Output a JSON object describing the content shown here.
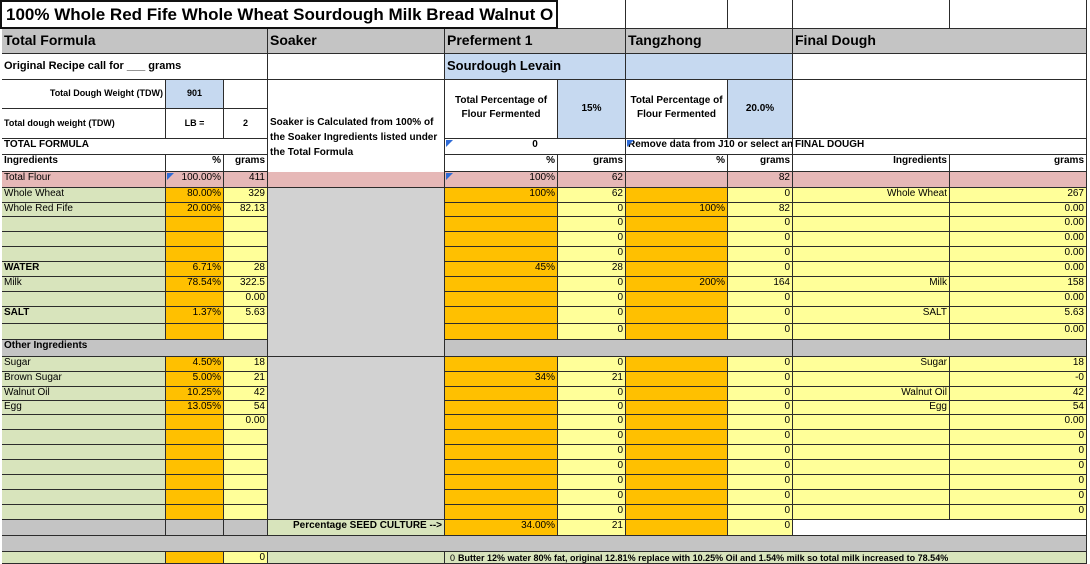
{
  "sheet_title": "100% Whole Red Fife Whole Wheat Sourdough Milk Bread Walnut O",
  "headers": {
    "total_formula": "Total Formula",
    "soaker": "Soaker",
    "preferment": "Preferment 1",
    "tangzhong": "Tangzhong",
    "final_dough": "Final Dough"
  },
  "original_recipe_label": "Original Recipe call for ___ grams",
  "sourdough_levain": "Sourdough Levain",
  "tdw_label": "Total Dough Weight (TDW)",
  "tdw_value": "901",
  "tdw_lb_label": "Total dough weight (TDW)",
  "lb_label": "LB =",
  "lb_value": "2",
  "soaker_note": "Soaker is Calculated from 100% of the Soaker Ingredients listed under the Total Formula",
  "pref_pct_label": "Total Percentage of Flour Fermented",
  "pref_pct_value": "15%",
  "tang_pct_label": "Total Percentage of Flour Fermented",
  "tang_pct_value": "20.0%",
  "total_formula_caps": "TOTAL FORMULA",
  "pref_zero": "0",
  "tang_remove_note": "Remove data from J10 or select an",
  "final_dough_caps": "FINAL DOUGH",
  "col_labels": {
    "ingredients": "Ingredients",
    "pct": "%",
    "grams": "grams"
  },
  "rows": [
    {
      "label": "Total Flour",
      "pct": "100.00%",
      "grams": "411",
      "pref_pct": "100%",
      "pref_g": "62",
      "tang_pct": "",
      "tang_g": "82",
      "fd_ing": "",
      "fd_g": ""
    },
    {
      "label": "Whole Wheat",
      "pct": "80.00%",
      "grams": "329",
      "pref_pct": "100%",
      "pref_g": "62",
      "tang_pct": "",
      "tang_g": "0",
      "fd_ing": "Whole Wheat",
      "fd_g": "267"
    },
    {
      "label": "Whole Red Fife",
      "pct": "20.00%",
      "grams": "82.13",
      "pref_pct": "",
      "pref_g": "0",
      "tang_pct": "100%",
      "tang_g": "82",
      "fd_ing": "",
      "fd_g": "0.00"
    },
    {
      "label": "",
      "pct": "",
      "grams": "",
      "pref_pct": "",
      "pref_g": "0",
      "tang_pct": "",
      "tang_g": "0",
      "fd_ing": "",
      "fd_g": "0.00"
    },
    {
      "label": "",
      "pct": "",
      "grams": "",
      "pref_pct": "",
      "pref_g": "0",
      "tang_pct": "",
      "tang_g": "0",
      "fd_ing": "",
      "fd_g": "0.00"
    },
    {
      "label": "",
      "pct": "",
      "grams": "",
      "pref_pct": "",
      "pref_g": "0",
      "tang_pct": "",
      "tang_g": "0",
      "fd_ing": "",
      "fd_g": "0.00"
    },
    {
      "label": "WATER",
      "pct": "6.71%",
      "grams": "28",
      "pref_pct": "45%",
      "pref_g": "28",
      "tang_pct": "",
      "tang_g": "0",
      "fd_ing": "",
      "fd_g": "0.00"
    },
    {
      "label": "Milk",
      "pct": "78.54%",
      "grams": "322.5",
      "pref_pct": "",
      "pref_g": "0",
      "tang_pct": "200%",
      "tang_g": "164",
      "fd_ing": "Milk",
      "fd_g": "158"
    },
    {
      "label": "",
      "pct": "",
      "grams": "0.00",
      "pref_pct": "",
      "pref_g": "0",
      "tang_pct": "",
      "tang_g": "0",
      "fd_ing": "",
      "fd_g": "0.00"
    },
    {
      "label": "SALT",
      "pct": "1.37%",
      "grams": "5.63",
      "pref_pct": "",
      "pref_g": "0",
      "tang_pct": "",
      "tang_g": "0",
      "fd_ing": "SALT",
      "fd_g": "5.63"
    },
    {
      "label": "",
      "pct": "",
      "grams": "",
      "pref_pct": "",
      "pref_g": "0",
      "tang_pct": "",
      "tang_g": "0",
      "fd_ing": "",
      "fd_g": "0.00"
    },
    {
      "label": "Other Ingredients",
      "pct": "",
      "grams": "",
      "pref_pct": "",
      "pref_g": "",
      "tang_pct": "",
      "tang_g": "",
      "fd_ing": "",
      "fd_g": ""
    },
    {
      "label": "Sugar",
      "pct": "4.50%",
      "grams": "18",
      "pref_pct": "",
      "pref_g": "0",
      "tang_pct": "",
      "tang_g": "0",
      "fd_ing": "Sugar",
      "fd_g": "18"
    },
    {
      "label": "Brown Sugar",
      "pct": "5.00%",
      "grams": "21",
      "pref_pct": "34%",
      "pref_g": "21",
      "tang_pct": "",
      "tang_g": "0",
      "fd_ing": "",
      "fd_g": "-0"
    },
    {
      "label": "Walnut Oil",
      "pct": "10.25%",
      "grams": "42",
      "pref_pct": "",
      "pref_g": "0",
      "tang_pct": "",
      "tang_g": "0",
      "fd_ing": "Walnut Oil",
      "fd_g": "42"
    },
    {
      "label": "Egg",
      "pct": "13.05%",
      "grams": "54",
      "pref_pct": "",
      "pref_g": "0",
      "tang_pct": "",
      "tang_g": "0",
      "fd_ing": "Egg",
      "fd_g": "54"
    },
    {
      "label": "",
      "pct": "",
      "grams": "0.00",
      "pref_pct": "",
      "pref_g": "0",
      "tang_pct": "",
      "tang_g": "0",
      "fd_ing": "",
      "fd_g": "0.00"
    },
    {
      "label": "",
      "pct": "",
      "grams": "",
      "pref_pct": "",
      "pref_g": "0",
      "tang_pct": "",
      "tang_g": "0",
      "fd_ing": "",
      "fd_g": "0"
    },
    {
      "label": "",
      "pct": "",
      "grams": "",
      "pref_pct": "",
      "pref_g": "0",
      "tang_pct": "",
      "tang_g": "0",
      "fd_ing": "",
      "fd_g": "0"
    },
    {
      "label": "",
      "pct": "",
      "grams": "",
      "pref_pct": "",
      "pref_g": "0",
      "tang_pct": "",
      "tang_g": "0",
      "fd_ing": "",
      "fd_g": "0"
    },
    {
      "label": "",
      "pct": "",
      "grams": "",
      "pref_pct": "",
      "pref_g": "0",
      "tang_pct": "",
      "tang_g": "0",
      "fd_ing": "",
      "fd_g": "0"
    },
    {
      "label": "",
      "pct": "",
      "grams": "",
      "pref_pct": "",
      "pref_g": "0",
      "tang_pct": "",
      "tang_g": "0",
      "fd_ing": "",
      "fd_g": "0"
    },
    {
      "label": "",
      "pct": "",
      "grams": "",
      "pref_pct": "",
      "pref_g": "0",
      "tang_pct": "",
      "tang_g": "0",
      "fd_ing": "",
      "fd_g": "0"
    },
    {
      "label": "",
      "pct": "",
      "grams": "",
      "pref_pct": "",
      "pref_g": "0",
      "tang_pct": "",
      "tang_g": "0",
      "fd_ing": "",
      "fd_g": "0"
    }
  ],
  "seed_culture_label": "Percentage SEED CULTURE -->",
  "seed_pct": "34.00%",
  "seed_grams": "21",
  "seed_tang_g": "0",
  "bottom_grams": "0",
  "bottom_pref_zero": "0",
  "bottom_note": "Butter 12% water 80% fat, original 12.81% replace with 10.25% Oil and 1.54% milk so total milk increased to 78.54%",
  "colors": {
    "header_gray": "#c4c4c4",
    "soaker_gray": "#d2d2d2",
    "levain_blue": "#c6d9f0",
    "label_green": "#d8e4bc",
    "pct_orange": "#ffc000",
    "grams_yellow": "#ffff99",
    "total_row_pink": "#e6b8b7",
    "border": "#2c2c2c"
  }
}
